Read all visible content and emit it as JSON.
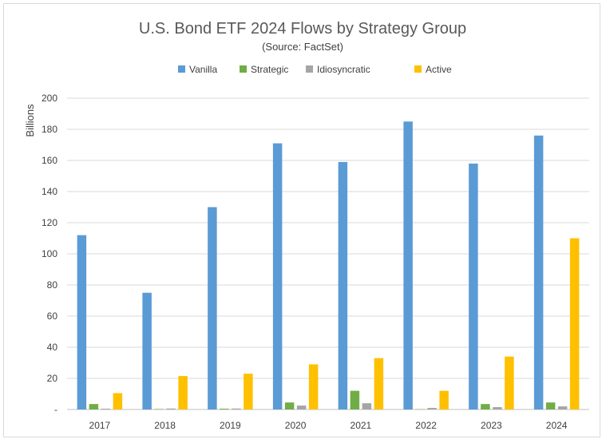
{
  "chart_data": {
    "type": "bar",
    "title": "U.S. Bond ETF 2024 Flows by Strategy Group",
    "subtitle": "(Source: FactSet)",
    "xlabel": "",
    "ylabel": "Billions",
    "ylim": [
      0,
      200
    ],
    "yticks": [
      "200",
      "180",
      "160",
      "140",
      "120",
      "100",
      "80",
      "60",
      "40",
      "20",
      "-"
    ],
    "grid": true,
    "legend_position": "top",
    "categories": [
      "2017",
      "2018",
      "2019",
      "2020",
      "2021",
      "2022",
      "2023",
      "2024"
    ],
    "series": [
      {
        "name": "Vanilla",
        "color": "#5b9bd5",
        "values": [
          112,
          75,
          130,
          171,
          159,
          185,
          158,
          176
        ]
      },
      {
        "name": "Strategic",
        "color": "#70ad47",
        "values": [
          3.5,
          0.3,
          0.5,
          4.5,
          12,
          0.2,
          3.5,
          4.5
        ]
      },
      {
        "name": "Idiosyncratic",
        "color": "#a5a5a5",
        "values": [
          0.5,
          0.6,
          0.6,
          2.5,
          4,
          1,
          1.5,
          2
        ]
      },
      {
        "name": "Active",
        "color": "#ffc000",
        "values": [
          10.5,
          21.5,
          23,
          29,
          33,
          12,
          34,
          110
        ]
      }
    ]
  }
}
